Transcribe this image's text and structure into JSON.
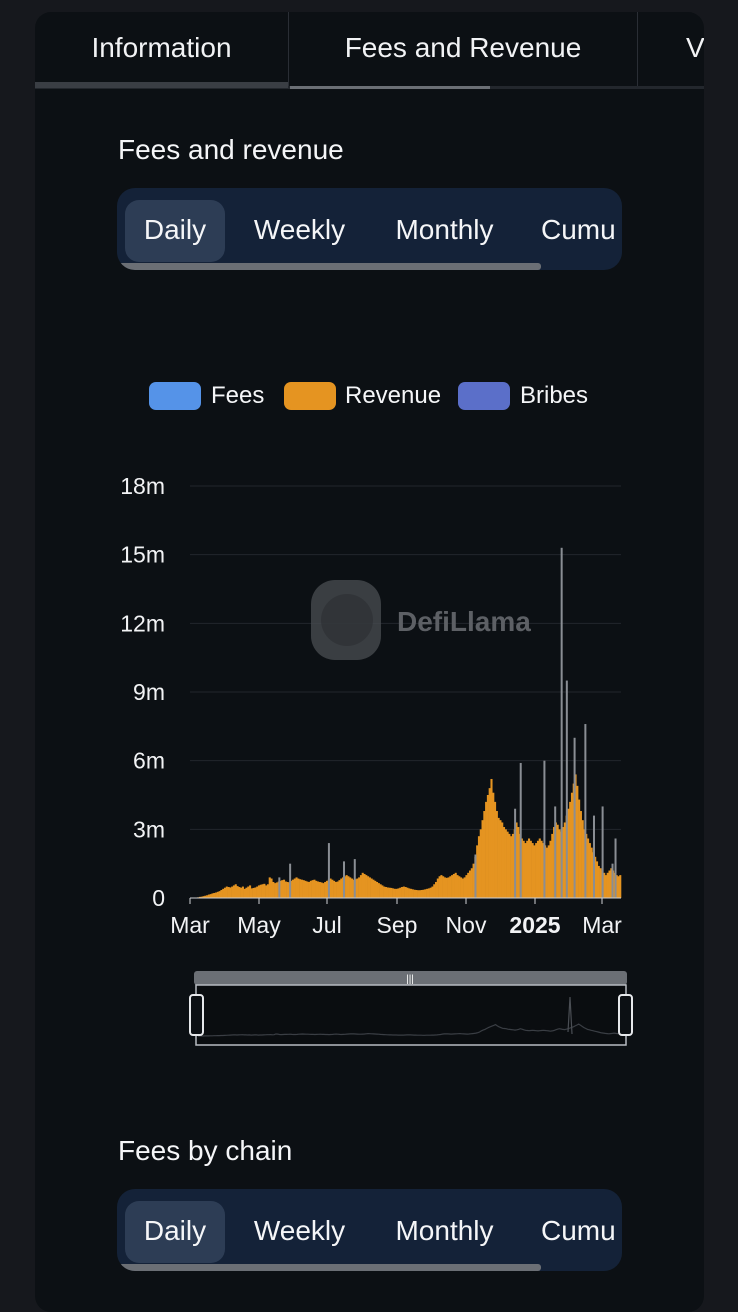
{
  "tabs": [
    {
      "label": "Information"
    },
    {
      "label": "Fees and Revenue"
    },
    {
      "label": "V"
    }
  ],
  "section1": {
    "title": "Fees and revenue",
    "pills": [
      "Daily",
      "Weekly",
      "Monthly",
      "Cumu"
    ]
  },
  "legend": [
    {
      "name": "Fees",
      "color": "#5593e8"
    },
    {
      "name": "Revenue",
      "color": "#e59421"
    },
    {
      "name": "Bribes",
      "color": "#5b6fc9"
    }
  ],
  "watermark": "DefiLlama",
  "chart_data": {
    "type": "bar",
    "y_ticks": [
      "0",
      "3m",
      "6m",
      "9m",
      "12m",
      "15m",
      "18m"
    ],
    "ylim": [
      0,
      18000000
    ],
    "x_ticks": [
      "Mar",
      "May",
      "Jul",
      "Sep",
      "Nov",
      "2025",
      "Mar"
    ],
    "x_tick_weights": [
      "normal",
      "normal",
      "normal",
      "normal",
      "normal",
      "bold",
      "normal"
    ],
    "grid": true,
    "legend_position": "top-center",
    "series": [
      {
        "name": "Fees",
        "color": "#8a8e94",
        "values": [
          0,
          0,
          0,
          0,
          0,
          0,
          0,
          0,
          0,
          0,
          0,
          0,
          0,
          0,
          0,
          0,
          0,
          0,
          0,
          0,
          0,
          0,
          0,
          0,
          0,
          0,
          0,
          0,
          0,
          0,
          0,
          0,
          0,
          0,
          0,
          0,
          0,
          0,
          0,
          0,
          0,
          0,
          0,
          0,
          0,
          0,
          0,
          0,
          0,
          0,
          0,
          0,
          0,
          0,
          0,
          0,
          0,
          0,
          0,
          0,
          0,
          0,
          0,
          0,
          0,
          0,
          0,
          0,
          0,
          0,
          0,
          0,
          0,
          0,
          0,
          0,
          0,
          0,
          0,
          0,
          0,
          0,
          0,
          0,
          0,
          0,
          0,
          0,
          0,
          0,
          0,
          0,
          0,
          0,
          0,
          0,
          0,
          0,
          0,
          0,
          0,
          0,
          0,
          0,
          0,
          0,
          0,
          0,
          0,
          0,
          0,
          0,
          0,
          0,
          0,
          0,
          0,
          0,
          0,
          0,
          0,
          0,
          0,
          0,
          0,
          0,
          0,
          0,
          0,
          0,
          0,
          0,
          0,
          0,
          0,
          0,
          0,
          0,
          0,
          0,
          0,
          0,
          0,
          0,
          0,
          0,
          0,
          0,
          0,
          0,
          0,
          0,
          0,
          0,
          0,
          0,
          0,
          0,
          0,
          0,
          0,
          0,
          0,
          0,
          0,
          0,
          0,
          0,
          0,
          0,
          0,
          0,
          0,
          0,
          0,
          0,
          0,
          0,
          0,
          0,
          0,
          0,
          0,
          0,
          0,
          0,
          0,
          0,
          0,
          0,
          0,
          0,
          0,
          0,
          0,
          0,
          0,
          0,
          0,
          0,
          0,
          0,
          0,
          0,
          0,
          0,
          0,
          0,
          0,
          0,
          0,
          0,
          0,
          0,
          0,
          0,
          0,
          0,
          0,
          0,
          0,
          0,
          0,
          0,
          0,
          0,
          0,
          0,
          0,
          0,
          0,
          0,
          0,
          0,
          0,
          0,
          0,
          0,
          0,
          0,
          0,
          0,
          0,
          0,
          0,
          0,
          0,
          0,
          0,
          0,
          0,
          0,
          0,
          0,
          0,
          0,
          0,
          0,
          0,
          0,
          0,
          0,
          0,
          0,
          0,
          0,
          0,
          0,
          0,
          0,
          0,
          0,
          0,
          0,
          0,
          0,
          0,
          0,
          0,
          0,
          0,
          0,
          0,
          0,
          0,
          0,
          0,
          0,
          0,
          0,
          0,
          0,
          0,
          0,
          0,
          0,
          0,
          0,
          0,
          0,
          0,
          0,
          0,
          0,
          0,
          0,
          0,
          0,
          0,
          0,
          0,
          0,
          0,
          0,
          0,
          0,
          0,
          0,
          0,
          0,
          0,
          0,
          0,
          0,
          0,
          0,
          0,
          0,
          0,
          0,
          0,
          0,
          0,
          0,
          0,
          0,
          0,
          0,
          0,
          0,
          0,
          0,
          0,
          0,
          0,
          0,
          0,
          0,
          0,
          0,
          0,
          0,
          0,
          0,
          0,
          0,
          0,
          0,
          0,
          0,
          0,
          0,
          0,
          0,
          0,
          0,
          0,
          0,
          0,
          0,
          0,
          0,
          0,
          0,
          0,
          0,
          0,
          0,
          0,
          0,
          0,
          0,
          0,
          0,
          0,
          0,
          0,
          0,
          0,
          0,
          0,
          0,
          0,
          0,
          0,
          0,
          0,
          0,
          0,
          0,
          0,
          0,
          0,
          0,
          0,
          0,
          0,
          0,
          0,
          0,
          0,
          0,
          0,
          0,
          0,
          0,
          0,
          0,
          0,
          0,
          0,
          0,
          0,
          0,
          0,
          0,
          0,
          0,
          0,
          0,
          0,
          0,
          0,
          0,
          0,
          0,
          0,
          0,
          0,
          0,
          0,
          0,
          0,
          0,
          0,
          0,
          0,
          0,
          0,
          0,
          0,
          0,
          0,
          0,
          0,
          0,
          0,
          0,
          0,
          0,
          0,
          0,
          0,
          0,
          0
        ]
      },
      {
        "name": "Revenue",
        "color": "#e59421",
        "values": [
          0,
          0,
          0.01,
          0.02,
          0.03,
          0.05,
          0.06,
          0.08,
          0.1,
          0.12,
          0.15,
          0.17,
          0.2,
          0.22,
          0.24,
          0.27,
          0.3,
          0.35,
          0.4,
          0.45,
          0.5,
          0.48,
          0.46,
          0.5,
          0.55,
          0.6,
          0.52,
          0.48,
          0.45,
          0.5,
          0.4,
          0.45,
          0.5,
          0.55,
          0.42,
          0.44,
          0.46,
          0.5,
          0.55,
          0.58,
          0.6,
          0.62,
          0.55,
          0.6,
          0.9,
          0.85,
          0.7,
          0.65,
          0.68,
          0.72,
          0.75,
          0.78,
          0.8,
          0.72,
          0.7,
          0.68,
          0.75,
          0.8,
          0.85,
          0.9,
          0.85,
          0.82,
          0.8,
          0.78,
          0.75,
          0.72,
          0.7,
          0.75,
          0.78,
          0.8,
          0.75,
          0.72,
          0.7,
          0.68,
          0.65,
          0.7,
          0.75,
          0.8,
          0.85,
          0.8,
          0.75,
          0.7,
          0.72,
          0.78,
          0.85,
          0.9,
          0.95,
          1.0,
          0.95,
          0.9,
          0.85,
          0.8,
          0.82,
          0.85,
          0.9,
          1.0,
          1.1,
          1.05,
          1.0,
          0.95,
          0.9,
          0.85,
          0.8,
          0.75,
          0.7,
          0.65,
          0.6,
          0.55,
          0.5,
          0.48,
          0.46,
          0.45,
          0.44,
          0.42,
          0.4,
          0.4,
          0.42,
          0.45,
          0.48,
          0.5,
          0.48,
          0.45,
          0.42,
          0.4,
          0.38,
          0.36,
          0.35,
          0.34,
          0.34,
          0.35,
          0.36,
          0.38,
          0.4,
          0.42,
          0.45,
          0.5,
          0.6,
          0.7,
          0.85,
          0.95,
          1.0,
          0.95,
          0.9,
          0.88,
          0.9,
          0.95,
          1.0,
          1.05,
          1.1,
          1.0,
          0.95,
          0.9,
          0.85,
          0.9,
          1.0,
          1.1,
          1.2,
          1.3,
          1.5,
          1.8,
          2.3,
          2.7,
          3.0,
          3.4,
          3.8,
          4.2,
          4.5,
          4.8,
          5.2,
          4.6,
          4.2,
          3.8,
          3.5,
          3.4,
          3.3,
          3.1,
          3.0,
          2.9,
          2.8,
          2.7,
          2.8,
          3.0,
          3.3,
          3.1,
          2.8,
          2.6,
          2.5,
          2.4,
          2.5,
          2.6,
          2.5,
          2.4,
          2.3,
          2.4,
          2.5,
          2.6,
          2.5,
          2.4,
          2.3,
          2.2,
          2.3,
          2.5,
          2.8,
          3.1,
          3.3,
          3.2,
          3.0,
          2.9,
          3.1,
          3.3,
          3.6,
          3.9,
          4.2,
          4.6,
          5.0,
          5.4,
          4.9,
          4.3,
          3.8,
          3.4,
          3.0,
          2.8,
          2.6,
          2.4,
          2.2,
          2.0,
          1.8,
          1.6,
          1.4,
          1.3,
          1.2,
          1.1,
          1.0,
          1.1,
          1.2,
          1.3,
          1.2,
          1.1,
          1.0,
          0.95,
          1.0
        ]
      },
      {
        "name": "Bribes",
        "color": "#5b6fc9",
        "values": []
      }
    ],
    "spikes": [
      {
        "at": 0.205,
        "value": 0.9
      },
      {
        "at": 0.23,
        "value": 1.5
      },
      {
        "at": 0.32,
        "value": 2.4
      },
      {
        "at": 0.355,
        "value": 1.6
      },
      {
        "at": 0.38,
        "value": 1.7
      },
      {
        "at": 0.66,
        "value": 1.9
      },
      {
        "at": 0.752,
        "value": 3.9
      },
      {
        "at": 0.765,
        "value": 5.9
      },
      {
        "at": 0.82,
        "value": 6.0
      },
      {
        "at": 0.845,
        "value": 4.0
      },
      {
        "at": 0.86,
        "value": 15.3
      },
      {
        "at": 0.872,
        "value": 9.5
      },
      {
        "at": 0.89,
        "value": 7.0
      },
      {
        "at": 0.915,
        "value": 7.6
      },
      {
        "at": 0.935,
        "value": 3.6
      },
      {
        "at": 0.955,
        "value": 4.0
      },
      {
        "at": 0.978,
        "value": 1.5
      },
      {
        "at": 0.985,
        "value": 2.6
      }
    ]
  },
  "section2": {
    "title": "Fees by chain",
    "pills": [
      "Daily",
      "Weekly",
      "Monthly",
      "Cumu"
    ]
  }
}
